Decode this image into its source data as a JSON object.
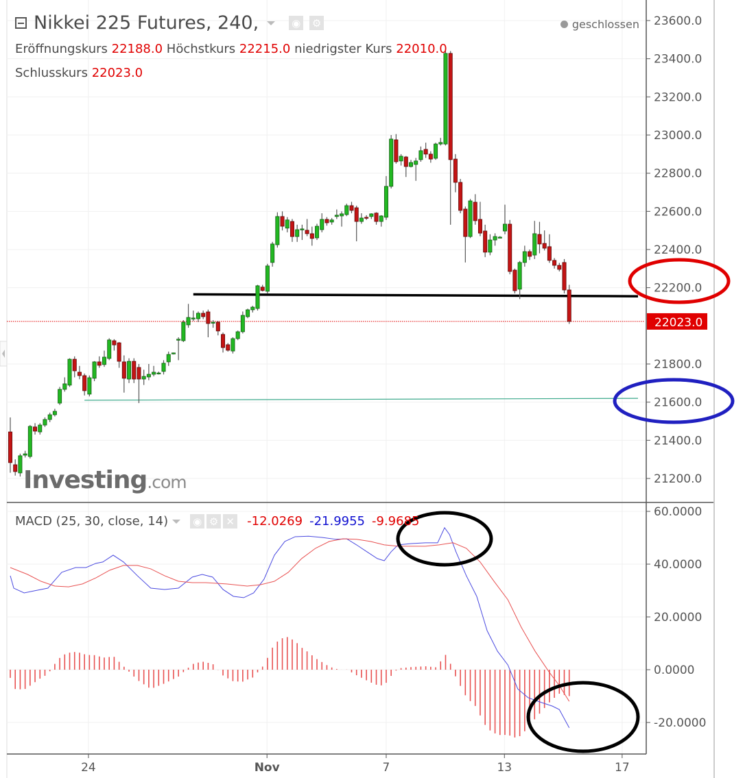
{
  "header": {
    "title": "Nikkei 225 Futures, 240,",
    "status": "geschlossen",
    "open_label": "Eröffnungskurs",
    "open_value": "22188.0",
    "high_label": "Höchstkurs",
    "high_value": "22215.0",
    "low_label": "niedrigster Kurs",
    "low_value": "22010.0",
    "close_label": "Schlusskurs",
    "close_value": "22023.0"
  },
  "macd_legend": {
    "title": "MACD (25, 30, close, 14)",
    "values": [
      "-12.0269",
      "-21.9955",
      "-9.9685"
    ]
  },
  "logo": "Investing.com",
  "colors": {
    "up": "#22b822",
    "down": "#c41414",
    "macd": "#4a4ae0",
    "signal": "#e85050",
    "histogram": "#e85050",
    "last_price": "#e00000",
    "support_line": "#3aa88a",
    "resistance_line": "#000000"
  },
  "annotations": [
    {
      "type": "ellipse",
      "color": "#e00000",
      "around": "22200.0 price label"
    },
    {
      "type": "ellipse",
      "color": "#2020c0",
      "around": "21600.0 price label"
    },
    {
      "type": "ellipse",
      "color": "#000000",
      "around": "MACD peak"
    },
    {
      "type": "ellipse",
      "color": "#000000",
      "around": "MACD latest values"
    }
  ],
  "chart_data": [
    {
      "type": "candlestick",
      "ylim": [
        21130,
        23660
      ],
      "y_ticks": [
        "23600.0",
        "23400.0",
        "23200.0",
        "23000.0",
        "22800.0",
        "22600.0",
        "22400.0",
        "22200.0",
        "21800.0",
        "21600.0",
        "21400.0",
        "21200.0"
      ],
      "last_price_label": "22023.0",
      "last_price": 22023,
      "horizontal_lines": [
        {
          "price": 22165,
          "color": "#000000",
          "from_index": 37,
          "price_end": 22155
        },
        {
          "price": 21610,
          "color": "#3aa88a",
          "from_index": 15,
          "price_end": 21620
        }
      ],
      "x_ticks": [
        {
          "label": "24",
          "index": 15.8
        },
        {
          "label": "Nov",
          "index": 51.9,
          "bold": true
        },
        {
          "label": "7",
          "index": 76.0
        },
        {
          "label": "13",
          "index": 99.9
        },
        {
          "label": "17",
          "index": 123.7
        }
      ],
      "ohlc": [
        [
          21444,
          21520,
          21230,
          21283
        ],
        [
          21272,
          21300,
          21215,
          21236
        ],
        [
          21229,
          21330,
          21210,
          21319
        ],
        [
          21322,
          21345,
          21310,
          21329
        ],
        [
          21315,
          21480,
          21305,
          21473
        ],
        [
          21470,
          21490,
          21430,
          21448
        ],
        [
          21444,
          21490,
          21430,
          21480
        ],
        [
          21480,
          21520,
          21470,
          21509
        ],
        [
          21509,
          21545,
          21495,
          21534
        ],
        [
          21534,
          21565,
          21525,
          21552
        ],
        [
          21595,
          21680,
          21585,
          21667
        ],
        [
          21667,
          21730,
          21655,
          21696
        ],
        [
          21689,
          21830,
          21680,
          21825
        ],
        [
          21825,
          21840,
          21730,
          21764
        ],
        [
          21757,
          21790,
          21720,
          21739
        ],
        [
          21739,
          21750,
          21635,
          21660
        ],
        [
          21642,
          21740,
          21630,
          21728
        ],
        [
          21725,
          21815,
          21710,
          21811
        ],
        [
          21811,
          21840,
          21780,
          21793
        ],
        [
          21797,
          21870,
          21785,
          21836
        ],
        [
          21829,
          21935,
          21820,
          21926
        ],
        [
          21922,
          21930,
          21870,
          21900
        ],
        [
          21911,
          21915,
          21780,
          21814
        ],
        [
          21811,
          21845,
          21650,
          21725
        ],
        [
          21721,
          21830,
          21700,
          21814
        ],
        [
          21814,
          21830,
          21700,
          21721
        ],
        [
          21782,
          21800,
          21595,
          21721
        ],
        [
          21721,
          21770,
          21690,
          21735
        ],
        [
          21732,
          21800,
          21715,
          21746
        ],
        [
          21746,
          21790,
          21735,
          21757
        ],
        [
          21750,
          21760,
          21745,
          21753
        ],
        [
          21761,
          21820,
          21745,
          21804
        ],
        [
          21811,
          21865,
          21790,
          21850
        ],
        [
          21854,
          21860,
          21850,
          21858
        ],
        [
          21926,
          21940,
          21820,
          21930
        ],
        [
          21922,
          22030,
          21915,
          22019
        ],
        [
          22005,
          22115,
          21990,
          22044
        ],
        [
          22037,
          22080,
          22025,
          22041
        ],
        [
          22037,
          22075,
          22020,
          22066
        ],
        [
          22066,
          22080,
          22035,
          22048
        ],
        [
          22073,
          22085,
          21940,
          22012
        ],
        [
          22016,
          22030,
          21990,
          22019
        ],
        [
          22019,
          22025,
          21950,
          21973
        ],
        [
          21955,
          21965,
          21860,
          21886
        ],
        [
          21901,
          21910,
          21865,
          21872
        ],
        [
          21868,
          21940,
          21855,
          21933
        ],
        [
          21933,
          21975,
          21925,
          21969
        ],
        [
          21969,
          22075,
          21960,
          22055
        ],
        [
          22048,
          22090,
          22040,
          22084
        ],
        [
          22084,
          22105,
          22070,
          22098
        ],
        [
          22091,
          22215,
          22080,
          22210
        ],
        [
          22203,
          22215,
          22180,
          22185
        ],
        [
          22181,
          22325,
          22170,
          22314
        ],
        [
          22332,
          22440,
          22310,
          22429
        ],
        [
          22425,
          22595,
          22410,
          22573
        ],
        [
          22573,
          22600,
          22500,
          22522
        ],
        [
          22512,
          22570,
          22490,
          22555
        ],
        [
          22547,
          22560,
          22440,
          22468
        ],
        [
          22468,
          22530,
          22440,
          22504
        ],
        [
          22504,
          22530,
          22450,
          22508
        ],
        [
          22501,
          22560,
          22470,
          22483
        ],
        [
          22483,
          22520,
          22420,
          22458
        ],
        [
          22461,
          22535,
          22450,
          22522
        ],
        [
          22504,
          22590,
          22490,
          22558
        ],
        [
          22558,
          22570,
          22525,
          22540
        ],
        [
          22544,
          22565,
          22530,
          22555
        ],
        [
          22573,
          22610,
          22560,
          22580
        ],
        [
          22576,
          22600,
          22520,
          22587
        ],
        [
          22583,
          22640,
          22575,
          22630
        ],
        [
          22630,
          22650,
          22590,
          22605
        ],
        [
          22619,
          22630,
          22443,
          22547
        ],
        [
          22547,
          22590,
          22535,
          22565
        ],
        [
          22569,
          22580,
          22555,
          22565
        ],
        [
          22573,
          22590,
          22560,
          22587
        ],
        [
          22591,
          22595,
          22530,
          22547
        ],
        [
          22547,
          22580,
          22520,
          22576
        ],
        [
          22569,
          22785,
          22555,
          22731
        ],
        [
          22731,
          23000,
          22720,
          22979
        ],
        [
          22975,
          23005,
          22850,
          22860
        ],
        [
          22864,
          22900,
          22840,
          22889
        ],
        [
          22885,
          22890,
          22780,
          22835
        ],
        [
          22835,
          22870,
          22830,
          22856
        ],
        [
          22846,
          22880,
          22760,
          22864
        ],
        [
          22871,
          22940,
          22860,
          22918
        ],
        [
          22925,
          22960,
          22880,
          22900
        ],
        [
          22900,
          22915,
          22855,
          22874
        ],
        [
          22878,
          22960,
          22870,
          22953
        ],
        [
          22953,
          22985,
          22945,
          22961
        ],
        [
          22953,
          23440,
          22945,
          23428
        ],
        [
          23428,
          23440,
          22530,
          22871
        ],
        [
          22874,
          22900,
          22700,
          22752
        ],
        [
          22752,
          22770,
          22590,
          22605
        ],
        [
          22612,
          22625,
          22332,
          22468
        ],
        [
          22468,
          22665,
          22460,
          22655
        ],
        [
          22648,
          22690,
          22530,
          22551
        ],
        [
          22558,
          22650,
          22470,
          22486
        ],
        [
          22497,
          22530,
          22360,
          22386
        ],
        [
          22386,
          22480,
          22370,
          22450
        ],
        [
          22450,
          22485,
          22420,
          22468
        ],
        [
          22461,
          22470,
          22460,
          22465
        ],
        [
          22497,
          22635,
          22480,
          22533
        ],
        [
          22533,
          22555,
          22270,
          22285
        ],
        [
          22292,
          22300,
          22170,
          22184
        ],
        [
          22192,
          22340,
          22140,
          22332
        ],
        [
          22332,
          22420,
          22310,
          22389
        ],
        [
          22389,
          22400,
          22345,
          22364
        ],
        [
          22371,
          22550,
          22350,
          22483
        ],
        [
          22479,
          22545,
          22380,
          22429
        ],
        [
          22432,
          22500,
          22395,
          22407
        ],
        [
          22415,
          22480,
          22330,
          22343
        ],
        [
          22343,
          22355,
          22300,
          22317
        ],
        [
          22317,
          22330,
          22285,
          22296
        ],
        [
          22332,
          22350,
          22170,
          22188
        ],
        [
          22188,
          22215,
          22010,
          22023
        ]
      ]
    },
    {
      "type": "line",
      "title": "MACD (25, 30, close, 14)",
      "ylim": [
        -31,
        61
      ],
      "y_ticks": [
        "60.0000",
        "40.0000",
        "20.0000",
        "0.0000",
        "-20.0000"
      ],
      "series": [
        {
          "color": "#4a4ae0",
          "points": [
            [
              0,
              35.6
            ],
            [
              0.7,
              30.9
            ],
            [
              2.8,
              29.1
            ],
            [
              4.9,
              29.9
            ],
            [
              7.6,
              30.9
            ],
            [
              10.4,
              36.9
            ],
            [
              13.2,
              38.7
            ],
            [
              15.3,
              38.7
            ],
            [
              17.3,
              40.3
            ],
            [
              18.7,
              40.8
            ],
            [
              20.8,
              43.4
            ],
            [
              22.9,
              40.8
            ],
            [
              25.7,
              35.6
            ],
            [
              28.4,
              30.9
            ],
            [
              31.2,
              30.4
            ],
            [
              34,
              30.9
            ],
            [
              36.8,
              35.1
            ],
            [
              38.8,
              36.1
            ],
            [
              40.9,
              35.1
            ],
            [
              43,
              30.4
            ],
            [
              45.1,
              27.8
            ],
            [
              47.2,
              27.3
            ],
            [
              49.2,
              29.1
            ],
            [
              51.3,
              34.3
            ],
            [
              53.4,
              43.4
            ],
            [
              55.5,
              48.6
            ],
            [
              57.6,
              50.4
            ],
            [
              60.3,
              50.6
            ],
            [
              63.1,
              50.1
            ],
            [
              65.9,
              49.4
            ],
            [
              68,
              49.6
            ],
            [
              70,
              47.3
            ],
            [
              72.1,
              44.7
            ],
            [
              74.2,
              42.1
            ],
            [
              75.6,
              41.3
            ],
            [
              77,
              44.7
            ],
            [
              78.4,
              47.3
            ],
            [
              81.1,
              47.8
            ],
            [
              83.9,
              48.1
            ],
            [
              86.4,
              48.1
            ],
            [
              87.8,
              53.8
            ],
            [
              88.8,
              51.2
            ],
            [
              90.1,
              44.7
            ],
            [
              92.2,
              35.6
            ],
            [
              94.3,
              27.8
            ],
            [
              96.4,
              14.8
            ],
            [
              98.5,
              7.0
            ],
            [
              100.6,
              1.8
            ],
            [
              102.6,
              -7.3
            ],
            [
              104.7,
              -10.6
            ],
            [
              107.5,
              -12.5
            ],
            [
              109.6,
              -13.8
            ],
            [
              111,
              -15.1
            ],
            [
              113,
              -22.0
            ]
          ]
        },
        {
          "color": "#e85050",
          "points": [
            [
              0,
              38.7
            ],
            [
              3.5,
              36.1
            ],
            [
              6.2,
              33.5
            ],
            [
              9,
              31.7
            ],
            [
              11.8,
              31.4
            ],
            [
              14.6,
              32.5
            ],
            [
              17.3,
              34.8
            ],
            [
              20.1,
              37.7
            ],
            [
              22.9,
              39.5
            ],
            [
              25.7,
              39.5
            ],
            [
              28.4,
              38.2
            ],
            [
              31.2,
              35.6
            ],
            [
              34,
              33.5
            ],
            [
              36.8,
              33.0
            ],
            [
              39.5,
              33.0
            ],
            [
              43.7,
              32.5
            ],
            [
              47.9,
              31.7
            ],
            [
              50.6,
              32.2
            ],
            [
              53.4,
              33.5
            ],
            [
              56.2,
              36.9
            ],
            [
              58.9,
              42.1
            ],
            [
              61.7,
              46.0
            ],
            [
              64.5,
              48.6
            ],
            [
              67.3,
              49.6
            ],
            [
              70,
              49.4
            ],
            [
              72.8,
              48.6
            ],
            [
              75.6,
              47.3
            ],
            [
              78.4,
              46.8
            ],
            [
              83.9,
              46.8
            ],
            [
              86.7,
              47.3
            ],
            [
              89.5,
              48.1
            ],
            [
              92.2,
              46.0
            ],
            [
              95,
              40.8
            ],
            [
              97.8,
              33.5
            ],
            [
              100.6,
              26.5
            ],
            [
              103.3,
              16.1
            ],
            [
              106.1,
              7.0
            ],
            [
              108.9,
              -0.8
            ],
            [
              111,
              -6.0
            ],
            [
              113,
              -12.0
            ]
          ]
        }
      ]
    }
  ]
}
